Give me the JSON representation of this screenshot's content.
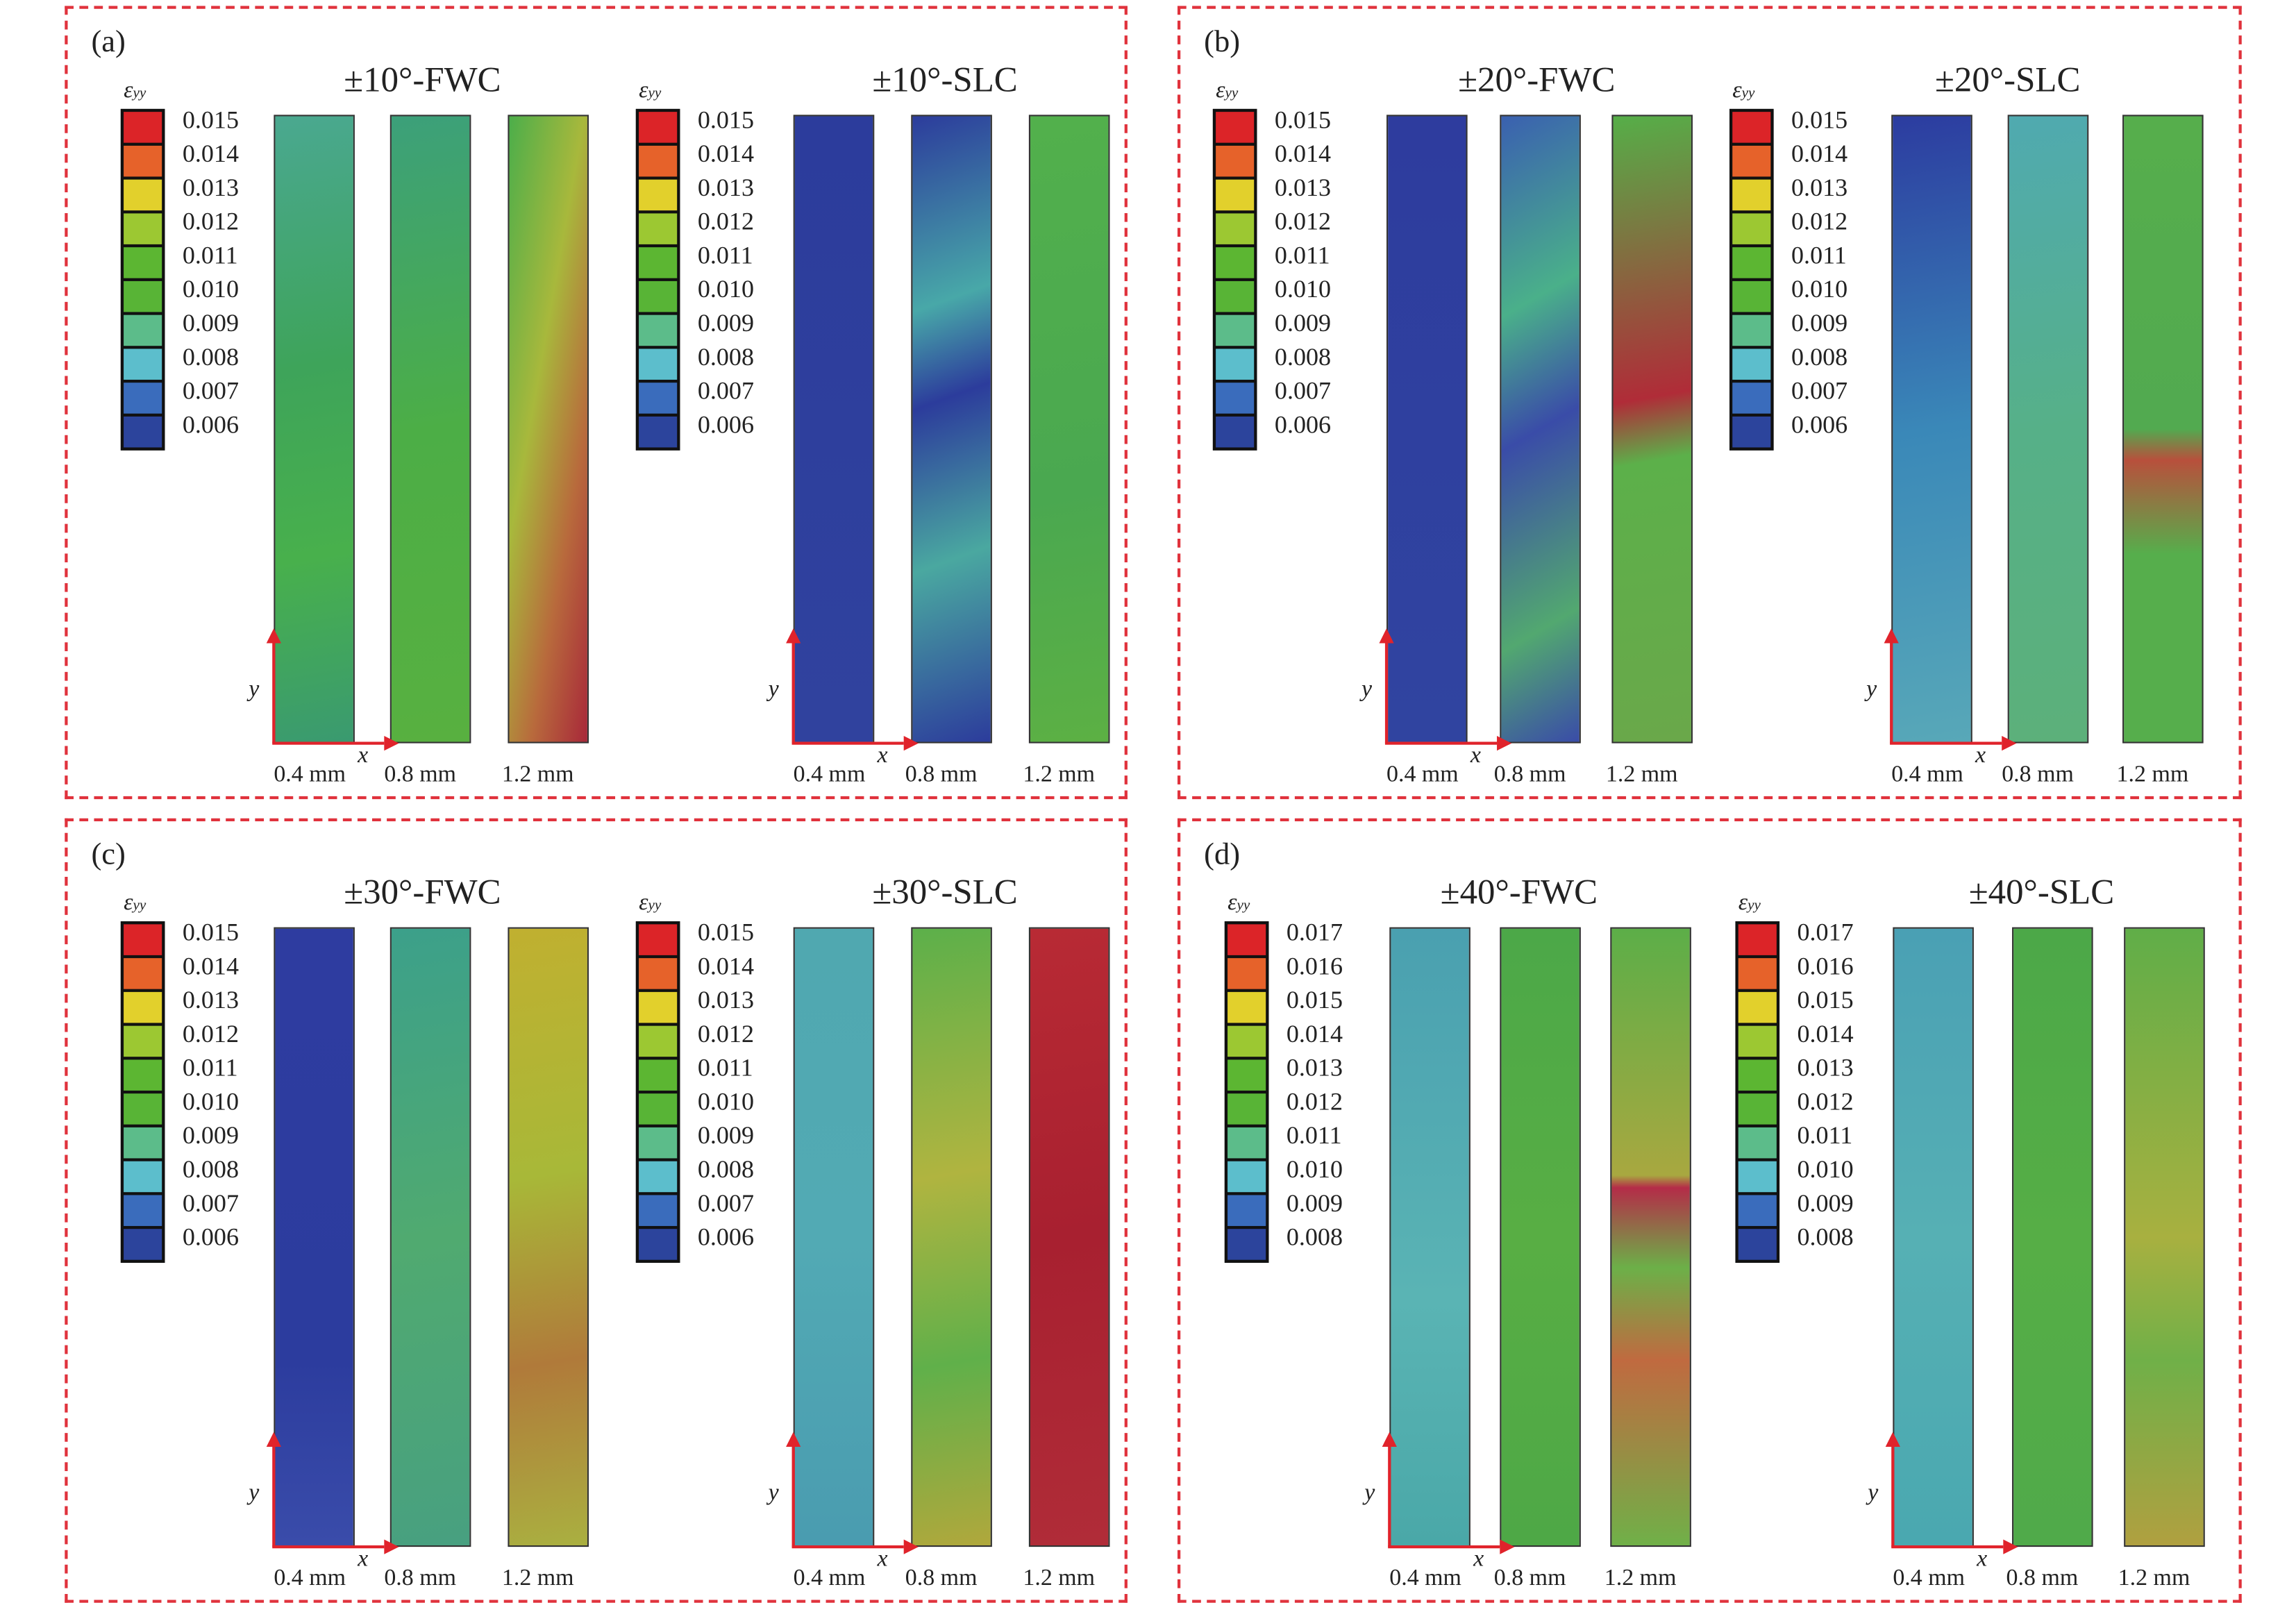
{
  "panels": [
    {
      "id": "(a)",
      "legend_symbol": "εyy",
      "legend_values": [
        "0.015",
        "0.014",
        "0.013",
        "0.012",
        "0.011",
        "0.010",
        "0.009",
        "0.008",
        "0.007",
        "0.006"
      ],
      "groups": [
        {
          "title": "±10°-FWC"
        },
        {
          "title": "±10°-SLC"
        }
      ]
    },
    {
      "id": "(b)",
      "legend_symbol": "εyy",
      "legend_values": [
        "0.015",
        "0.014",
        "0.013",
        "0.012",
        "0.011",
        "0.010",
        "0.009",
        "0.008",
        "0.007",
        "0.006"
      ],
      "groups": [
        {
          "title": "±20°-FWC"
        },
        {
          "title": "±20°-SLC"
        }
      ]
    },
    {
      "id": "(c)",
      "legend_symbol": "εyy",
      "legend_values": [
        "0.015",
        "0.014",
        "0.013",
        "0.012",
        "0.011",
        "0.010",
        "0.009",
        "0.008",
        "0.007",
        "0.006"
      ],
      "groups": [
        {
          "title": "±30°-FWC"
        },
        {
          "title": "±30°-SLC"
        }
      ]
    },
    {
      "id": "(d)",
      "legend_symbol": "εyy",
      "legend_values": [
        "0.017",
        "0.016",
        "0.015",
        "0.014",
        "0.013",
        "0.012",
        "0.011",
        "0.010",
        "0.009",
        "0.008"
      ],
      "groups": [
        {
          "title": "±40°-FWC"
        },
        {
          "title": "±40°-SLC"
        }
      ]
    }
  ],
  "thickness_labels": [
    "0.4 mm",
    "0.8 mm",
    "1.2 mm"
  ],
  "axis_labels": {
    "x": "x",
    "y": "y"
  },
  "legend_colors": [
    "#dc2428",
    "#e6622a",
    "#e2d02c",
    "#9cc832",
    "#5cb632",
    "#58b436",
    "#5cbc8a",
    "#5cbecc",
    "#3a6cbc",
    "#2c449c"
  ],
  "frame_color": "#e0323c"
}
